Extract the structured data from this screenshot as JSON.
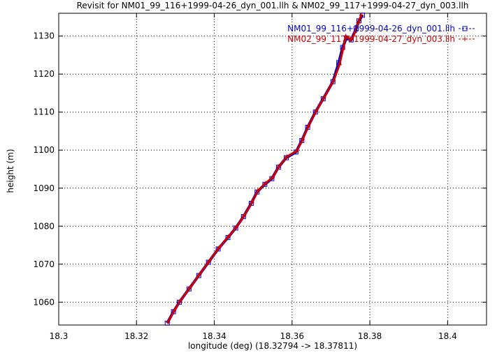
{
  "chart_data": {
    "type": "line",
    "title": "Revisit for NM01_99_116+1999-04-26_dyn_001.llh & NM02_99_117+1999-04-27_dyn_003.llh",
    "xlabel": "longitude (deg) (18.32794 -> 18.37811)",
    "ylabel": "height (m)",
    "xlim": [
      18.3,
      18.41
    ],
    "ylim": [
      1054,
      1136
    ],
    "x_ticks": [
      18.3,
      18.32,
      18.34,
      18.36,
      18.38,
      18.4
    ],
    "x_tick_labels": [
      "18.3",
      "18.32",
      "18.34",
      "18.36",
      "18.38",
      "18.4"
    ],
    "y_ticks": [
      1060,
      1070,
      1080,
      1090,
      1100,
      1110,
      1120,
      1130
    ],
    "y_tick_labels": [
      "1060",
      "1070",
      "1080",
      "1090",
      "1100",
      "1110",
      "1120",
      "1130"
    ],
    "grid": true,
    "legend_position": "top-right",
    "series": [
      {
        "name": "NM01_99_116+1999-04-26_dyn_001.llh",
        "color": "#0000cc",
        "marker": "square",
        "x": [
          18.3279,
          18.3295,
          18.331,
          18.3335,
          18.336,
          18.3385,
          18.341,
          18.3435,
          18.3455,
          18.3475,
          18.3495,
          18.351,
          18.353,
          18.3548,
          18.3565,
          18.3585,
          18.361,
          18.3625,
          18.364,
          18.366,
          18.368,
          18.3705,
          18.372,
          18.373,
          18.374,
          18.3752,
          18.3765,
          18.3772,
          18.3781
        ],
        "y": [
          1054.5,
          1057.5,
          1060,
          1063.5,
          1067,
          1070.5,
          1074,
          1077,
          1079.5,
          1082.5,
          1086,
          1089,
          1091,
          1092.5,
          1095.5,
          1098,
          1099.5,
          1102.5,
          1106,
          1110,
          1113.5,
          1118,
          1123,
          1127,
          1129.5,
          1129,
          1132,
          1134,
          1135.5
        ]
      },
      {
        "name": "NM02_99_117+1999-04-27_dyn_003.llh",
        "color": "#cc0000",
        "marker": "plus",
        "x": [
          18.3281,
          18.3297,
          18.3312,
          18.3337,
          18.3362,
          18.3387,
          18.3412,
          18.3437,
          18.3457,
          18.3477,
          18.3497,
          18.3512,
          18.3532,
          18.355,
          18.3567,
          18.3587,
          18.3612,
          18.3627,
          18.3642,
          18.3662,
          18.3682,
          18.3707,
          18.3722,
          18.3731,
          18.3738,
          18.3745,
          18.3752,
          18.3762,
          18.377,
          18.3778
        ],
        "y": [
          1054.8,
          1057.8,
          1060.3,
          1063.8,
          1067.3,
          1070.8,
          1074.3,
          1077.3,
          1079.8,
          1082.8,
          1086.3,
          1089.3,
          1091.3,
          1092.8,
          1095.8,
          1098.3,
          1099.8,
          1102.8,
          1106.3,
          1110.3,
          1113.8,
          1118.3,
          1122.5,
          1126.5,
          1130,
          1129.5,
          1129,
          1131,
          1133.5,
          1135.5
        ]
      }
    ]
  }
}
